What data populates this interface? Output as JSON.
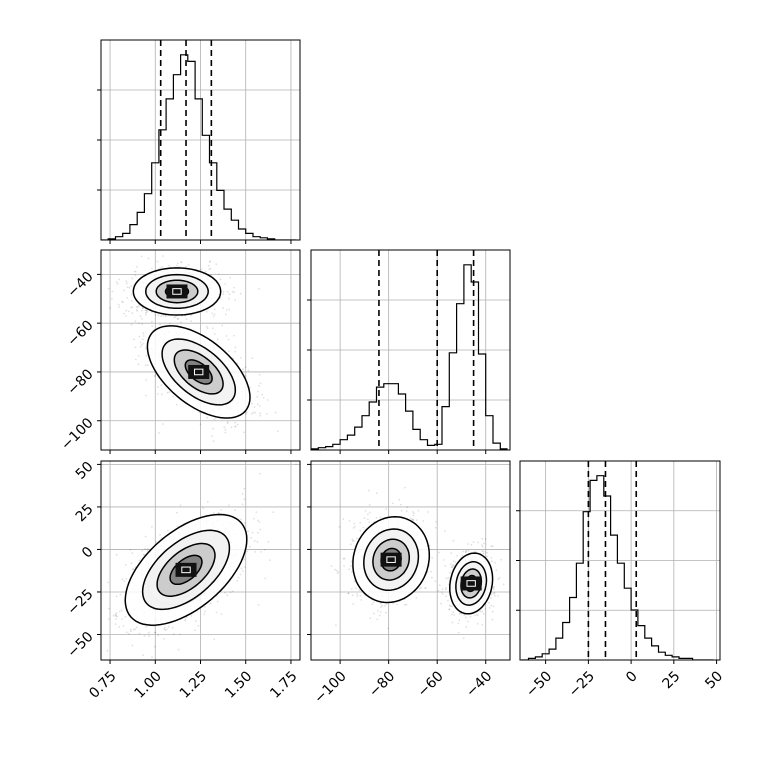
{
  "chart_data": {
    "type": "corner",
    "title": "",
    "grid": true,
    "parameters": [
      {
        "label": "",
        "range": [
          0.7,
          1.8
        ],
        "ticks": [
          "0.75",
          "1.00",
          "1.25",
          "1.50",
          "1.75"
        ],
        "tick_values": [
          0.75,
          1.0,
          1.25,
          1.5,
          1.75
        ],
        "quantiles": [
          1.03,
          1.17,
          1.31
        ]
      },
      {
        "label": "",
        "range": [
          -112,
          -30
        ],
        "ticks": [
          "−100",
          "−80",
          "−60",
          "−40"
        ],
        "tick_values": [
          -100,
          -80,
          -60,
          -40
        ],
        "quantiles": [
          -84,
          -60,
          -45
        ]
      },
      {
        "label": "",
        "range": [
          -65,
          52
        ],
        "ticks": [
          "−50",
          "−25",
          "0",
          "25",
          "50"
        ],
        "tick_values": [
          -50,
          -25,
          0,
          25,
          50
        ],
        "quantiles": [
          -25,
          -15,
          3
        ]
      }
    ],
    "histograms": [
      {
        "param": 0,
        "bin_edges": [
          0.7,
          0.74,
          0.78,
          0.82,
          0.86,
          0.9,
          0.94,
          0.98,
          1.02,
          1.06,
          1.1,
          1.14,
          1.18,
          1.22,
          1.26,
          1.3,
          1.34,
          1.38,
          1.42,
          1.46,
          1.5,
          1.54,
          1.58,
          1.62,
          1.66,
          1.7,
          1.74,
          1.78
        ],
        "counts": [
          0,
          1,
          3,
          6,
          14,
          25,
          42,
          70,
          100,
          128,
          150,
          168,
          162,
          128,
          95,
          70,
          45,
          28,
          18,
          10,
          6,
          3,
          2,
          1,
          0,
          0,
          0
        ]
      },
      {
        "param": 1,
        "bin_edges": [
          -112,
          -109,
          -106,
          -103,
          -100,
          -97,
          -94,
          -91,
          -88,
          -85,
          -82,
          -79,
          -76,
          -73,
          -70,
          -67,
          -64,
          -61,
          -58,
          -55,
          -52,
          -49,
          -46,
          -43,
          -40,
          -37,
          -34,
          -31
        ],
        "counts": [
          1,
          2,
          3,
          5,
          9,
          13,
          20,
          30,
          42,
          55,
          58,
          58,
          49,
          34,
          18,
          9,
          4,
          5,
          38,
          85,
          128,
          162,
          147,
          84,
          30,
          6,
          1
        ]
      },
      {
        "param": 2,
        "bin_edges": [
          -64,
          -60,
          -56,
          -52,
          -48,
          -44,
          -40,
          -36,
          -32,
          -28,
          -24,
          -20,
          -16,
          -12,
          -8,
          -4,
          0,
          4,
          8,
          12,
          16,
          20,
          24,
          28,
          32,
          36,
          40,
          44,
          48
        ],
        "counts": [
          0,
          1,
          2,
          4,
          7,
          14,
          24,
          40,
          62,
          95,
          115,
          118,
          105,
          80,
          62,
          46,
          32,
          22,
          14,
          9,
          5,
          3,
          2,
          1,
          1,
          0,
          0,
          0
        ]
      }
    ],
    "pairs": [
      {
        "x_param": 0,
        "y_param": 1,
        "modes": [
          {
            "cx": 1.12,
            "cy": -47,
            "sx": 0.115,
            "sy": 4.6,
            "rho": 0.0,
            "weight": 0.52
          },
          {
            "cx": 1.24,
            "cy": -80,
            "sx": 0.135,
            "sy": 9.0,
            "rho": -0.55,
            "weight": 0.48
          }
        ]
      },
      {
        "x_param": 0,
        "y_param": 2,
        "modes": [
          {
            "cx": 1.12,
            "cy": -20,
            "sx": 0.075,
            "sy": 6.0,
            "rho": 0.1,
            "weight": 0.4
          },
          {
            "cx": 1.17,
            "cy": -12,
            "sx": 0.16,
            "sy": 15.5,
            "rho": 0.55,
            "weight": 0.6
          }
        ]
      },
      {
        "x_param": 1,
        "y_param": 2,
        "modes": [
          {
            "cx": -79,
            "cy": -6,
            "sx": 7.5,
            "sy": 12.0,
            "rho": 0.1,
            "weight": 0.5
          },
          {
            "cx": -46,
            "cy": -20,
            "sx": 4.2,
            "sy": 8.5,
            "rho": 0.15,
            "weight": 0.5
          }
        ]
      }
    ],
    "contour_levels_sigma": [
      0.5,
      1.0,
      1.5,
      2.0
    ]
  }
}
